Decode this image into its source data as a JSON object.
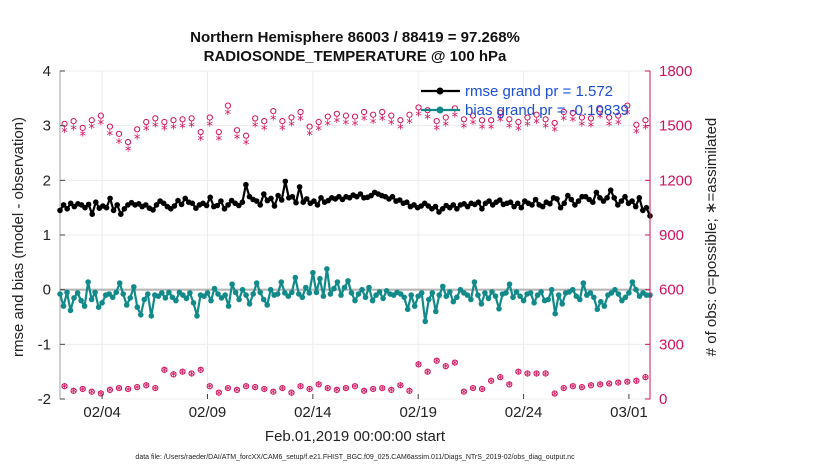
{
  "chart_data": {
    "type": "line",
    "title_line1": "Northern Hemisphere 86003 / 88419 = 97.268%",
    "title_line2": "RADIOSONDE_TEMPERATURE @ 100 hPa",
    "xlabel": "Feb.01,2019 00:00:00 start",
    "ylabel": "rmse and bias (model - observation)",
    "ylabel_right": "# of obs: o=possible; ∗=assimilated",
    "footnote": "data file: /Users/raeder/DAI/ATM_forcXX/CAM6_setup/f.e21.FHIST_BGC.f09_025.CAM6assim.011/Diags_NTrS_2019-02/obs_diag_output.nc",
    "xlim": [
      1,
      29
    ],
    "ylim": [
      -2,
      4
    ],
    "ylim_right": [
      0,
      1800
    ],
    "x_ticks": [
      3,
      8,
      13,
      18,
      23,
      28
    ],
    "x_tick_labels": [
      "02/04",
      "02/09",
      "02/14",
      "02/19",
      "02/24",
      "03/01"
    ],
    "y_ticks": [
      -2,
      -1,
      0,
      1,
      2,
      3,
      4
    ],
    "y_tick_labels": [
      "-2",
      "-1",
      "0",
      "1",
      "2",
      "3",
      "4"
    ],
    "y_right_ticks": [
      0,
      300,
      600,
      900,
      1200,
      1500,
      1800
    ],
    "y_right_tick_labels": [
      "0",
      "300",
      "600",
      "900",
      "1200",
      "1500",
      "1800"
    ],
    "colors": {
      "rmse": "#000000",
      "bias": "#138a8a",
      "obs": "#d1105e",
      "legend_text": "#1a4fd6",
      "zero_line": "#b5b5b5"
    },
    "series": [
      {
        "name": "rmse grand pr = 1.572",
        "values": [
          1.45,
          1.55,
          1.48,
          1.58,
          1.52,
          1.57,
          1.55,
          1.5,
          1.56,
          1.38,
          1.6,
          1.49,
          1.53,
          1.5,
          1.67,
          1.45,
          1.55,
          1.38,
          1.48,
          1.55,
          1.59,
          1.55,
          1.57,
          1.52,
          1.55,
          1.49,
          1.46,
          1.55,
          1.62,
          1.58,
          1.52,
          1.48,
          1.53,
          1.63,
          1.56,
          1.67,
          1.6,
          1.58,
          1.49,
          1.55,
          1.58,
          1.54,
          1.69,
          1.52,
          1.54,
          1.62,
          1.48,
          1.55,
          1.63,
          1.58,
          1.54,
          1.6,
          1.92,
          1.7,
          1.65,
          1.62,
          1.55,
          1.75,
          1.63,
          1.67,
          1.53,
          1.72,
          1.64,
          1.98,
          1.68,
          1.7,
          1.59,
          1.88,
          1.6,
          1.66,
          1.58,
          1.62,
          1.55,
          1.68,
          1.6,
          1.63,
          1.68,
          1.66,
          1.7,
          1.65,
          1.7,
          1.68,
          1.73,
          1.7,
          1.75,
          1.68,
          1.69,
          1.72,
          1.78,
          1.75,
          1.72,
          1.7,
          1.66,
          1.7,
          1.62,
          1.64,
          1.58,
          1.6,
          1.52,
          1.55,
          1.5,
          1.53,
          1.58,
          1.53,
          1.48,
          1.52,
          1.42,
          1.48,
          1.54,
          1.5,
          1.55,
          1.48,
          1.55,
          1.57,
          1.52,
          1.58,
          1.56,
          1.6,
          1.48,
          1.58,
          1.62,
          1.55,
          1.6,
          1.64,
          1.56,
          1.58,
          1.6,
          1.52,
          1.58,
          1.5,
          1.62,
          1.58,
          1.55,
          1.65,
          1.55,
          1.52,
          1.6,
          1.57,
          1.68,
          1.66,
          1.5,
          1.58,
          1.72,
          1.65,
          1.55,
          1.62,
          1.7,
          1.7,
          1.65,
          1.6,
          1.78,
          1.68,
          1.62,
          1.68,
          1.82,
          1.68,
          1.55,
          1.62,
          1.7,
          1.58,
          1.62,
          1.52,
          1.68,
          1.45,
          1.5,
          1.35
        ]
      },
      {
        "name": "bias grand pr = -0.10839",
        "values": [
          -0.08,
          -0.3,
          -0.05,
          -0.38,
          -0.15,
          -0.06,
          -0.2,
          -0.3,
          0.14,
          -0.18,
          -0.05,
          -0.32,
          -0.24,
          -0.1,
          -0.08,
          -0.14,
          -0.05,
          0.12,
          -0.08,
          -0.28,
          -0.15,
          0.05,
          -0.32,
          -0.46,
          -0.18,
          -0.08,
          -0.48,
          -0.1,
          -0.12,
          -0.06,
          -0.15,
          -0.05,
          -0.14,
          -0.2,
          -0.05,
          -0.1,
          -0.16,
          -0.06,
          -0.24,
          -0.48,
          -0.1,
          -0.12,
          -0.06,
          -0.2,
          0.02,
          -0.08,
          -0.15,
          -0.1,
          -0.3,
          0.1,
          -0.05,
          -0.18,
          0.0,
          -0.1,
          -0.26,
          -0.08,
          0.12,
          -0.05,
          -0.18,
          -0.28,
          0.0,
          -0.1,
          -0.08,
          0.14,
          -0.06,
          -0.12,
          -0.05,
          0.22,
          -0.08,
          -0.14,
          0.04,
          -0.06,
          0.31,
          -0.05,
          0.2,
          -0.12,
          0.38,
          -0.08,
          0.02,
          0.14,
          -0.1,
          0.04,
          0.16,
          -0.06,
          -0.2,
          -0.08,
          0.0,
          -0.14,
          0.04,
          -0.2,
          -0.1,
          -0.04,
          -0.16,
          -0.02,
          -0.08,
          -0.1,
          -0.05,
          -0.08,
          -0.14,
          -0.36,
          -0.1,
          -0.3,
          -0.12,
          -0.06,
          -0.58,
          -0.18,
          -0.06,
          -0.4,
          -0.1,
          0.06,
          -0.12,
          -0.04,
          -0.22,
          -0.14,
          0.0,
          -0.06,
          -0.1,
          -0.18,
          0.14,
          -0.1,
          -0.26,
          -0.06,
          -0.16,
          -0.04,
          -0.12,
          -0.35,
          -0.08,
          -0.06,
          0.1,
          -0.14,
          -0.04,
          -0.12,
          -0.2,
          -0.08,
          -0.06,
          -0.24,
          -0.1,
          -0.04,
          -0.2,
          -0.18,
          0.0,
          -0.44,
          -0.1,
          -0.26,
          -0.06,
          -0.04,
          0.0,
          -0.12,
          -0.18,
          0.12,
          -0.1,
          -0.06,
          -0.14,
          -0.36,
          -0.22,
          -0.3,
          -0.1,
          -0.06,
          0.0,
          -0.08,
          -0.2,
          -0.14,
          -0.06,
          0.14,
          0.0,
          -0.12,
          -0.06,
          -0.1,
          -0.1
        ]
      }
    ],
    "obs_possible": [
      1510,
      1525,
      1488,
      1530,
      1555,
      1495,
      1455,
      1410,
      1480,
      1520,
      1540,
      1520,
      1530,
      1535,
      1540,
      1465,
      1545,
      1465,
      1610,
      1475,
      1445,
      1540,
      1525,
      1580,
      1525,
      1545,
      1575,
      1495,
      1520,
      1550,
      1565,
      1555,
      1550,
      1575,
      1560,
      1575,
      1555,
      1530,
      1560,
      1600,
      1585,
      1525,
      1545,
      1595,
      1535,
      1555,
      1530,
      1530,
      1570,
      1535,
      1520,
      1545,
      1560,
      1535,
      1515,
      1575,
      1570,
      1545,
      1540,
      1590,
      1545,
      1555,
      1610,
      1505,
      1530
    ],
    "obs_assimilated": [
      1465,
      1480,
      1445,
      1488,
      1510,
      1450,
      1405,
      1365,
      1430,
      1475,
      1495,
      1480,
      1485,
      1490,
      1495,
      1420,
      1500,
      1420,
      1565,
      1430,
      1400,
      1495,
      1480,
      1535,
      1480,
      1500,
      1530,
      1450,
      1475,
      1505,
      1520,
      1510,
      1505,
      1530,
      1515,
      1530,
      1510,
      1485,
      1515,
      1555,
      1540,
      1480,
      1500,
      1550,
      1490,
      1510,
      1485,
      1485,
      1525,
      1490,
      1475,
      1500,
      1515,
      1490,
      1470,
      1530,
      1525,
      1500,
      1495,
      1545,
      1500,
      1510,
      1565,
      1460,
      1485
    ],
    "obs_low_possible": [
      70,
      45,
      55,
      40,
      30,
      50,
      60,
      55,
      65,
      75,
      60,
      160,
      135,
      150,
      140,
      160,
      70,
      35,
      60,
      50,
      70,
      65,
      55,
      40,
      60,
      35,
      70,
      55,
      80,
      60,
      50,
      60,
      70,
      45,
      55,
      60,
      50,
      75,
      45,
      190,
      150,
      210,
      180,
      200,
      40,
      60,
      55,
      100,
      120,
      80,
      150,
      140,
      140,
      140,
      30,
      60,
      70,
      65,
      75,
      80,
      85,
      90,
      95,
      100,
      120
    ],
    "obs_low_assimilated": [
      60,
      35,
      45,
      30,
      22,
      40,
      50,
      45,
      55,
      65,
      50,
      150,
      125,
      140,
      130,
      150,
      60,
      25,
      50,
      40,
      60,
      55,
      45,
      30,
      50,
      25,
      60,
      45,
      70,
      50,
      40,
      50,
      60,
      35,
      45,
      50,
      40,
      65,
      35,
      180,
      140,
      200,
      170,
      190,
      30,
      50,
      45,
      90,
      110,
      70,
      140,
      130,
      130,
      130,
      20,
      50,
      60,
      55,
      65,
      70,
      75,
      80,
      85,
      90,
      110
    ],
    "legend_position": "top-right"
  }
}
